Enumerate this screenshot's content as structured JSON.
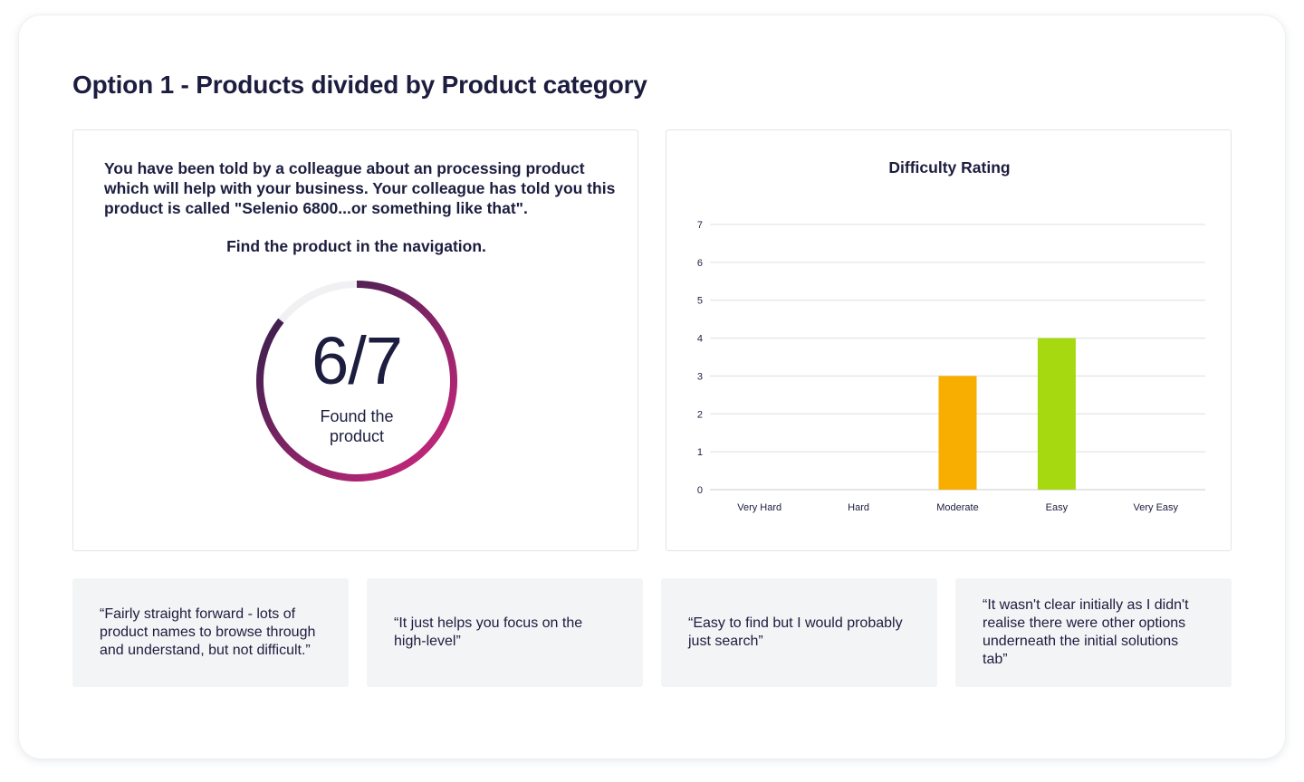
{
  "page": {
    "title": "Option 1 - Products divided by Product category"
  },
  "task": {
    "description": "You have been told by a colleague about an processing product which will help with your business.  Your colleague has told you this product is called \"Selenio 6800...or something like that\".",
    "instruction": "Find the product in the navigation.",
    "score_label": "6/7",
    "found": 6,
    "total": 7,
    "caption": "Found the product",
    "colors": {
      "start": "#2a1f48",
      "end": "#d3287f",
      "track": "#f1f1f3"
    }
  },
  "chart_data": {
    "type": "bar",
    "title": "Difficulty Rating",
    "categories": [
      "Very Hard",
      "Hard",
      "Moderate",
      "Easy",
      "Very Easy"
    ],
    "values": [
      0,
      0,
      3,
      4,
      0
    ],
    "colors": [
      "#1c1d3f",
      "#1c1d3f",
      "#f7ae00",
      "#a6d90f",
      "#1c1d3f"
    ],
    "xlabel": "",
    "ylabel": "",
    "ylim": [
      0,
      7
    ],
    "yticks": [
      "0",
      "1",
      "2",
      "3",
      "4",
      "5",
      "6",
      "7"
    ],
    "grid": true,
    "legend": "none"
  },
  "quotes": [
    {
      "text": "“Fairly straight forward - lots of product names to browse through and understand, but not difficult.”"
    },
    {
      "text": "“It just helps you focus on the high-level”"
    },
    {
      "text": "“Easy to find but I would probably just search”"
    },
    {
      "text": "“It wasn't clear initially as I didn't realise there were other options underneath the initial solutions tab”"
    }
  ]
}
